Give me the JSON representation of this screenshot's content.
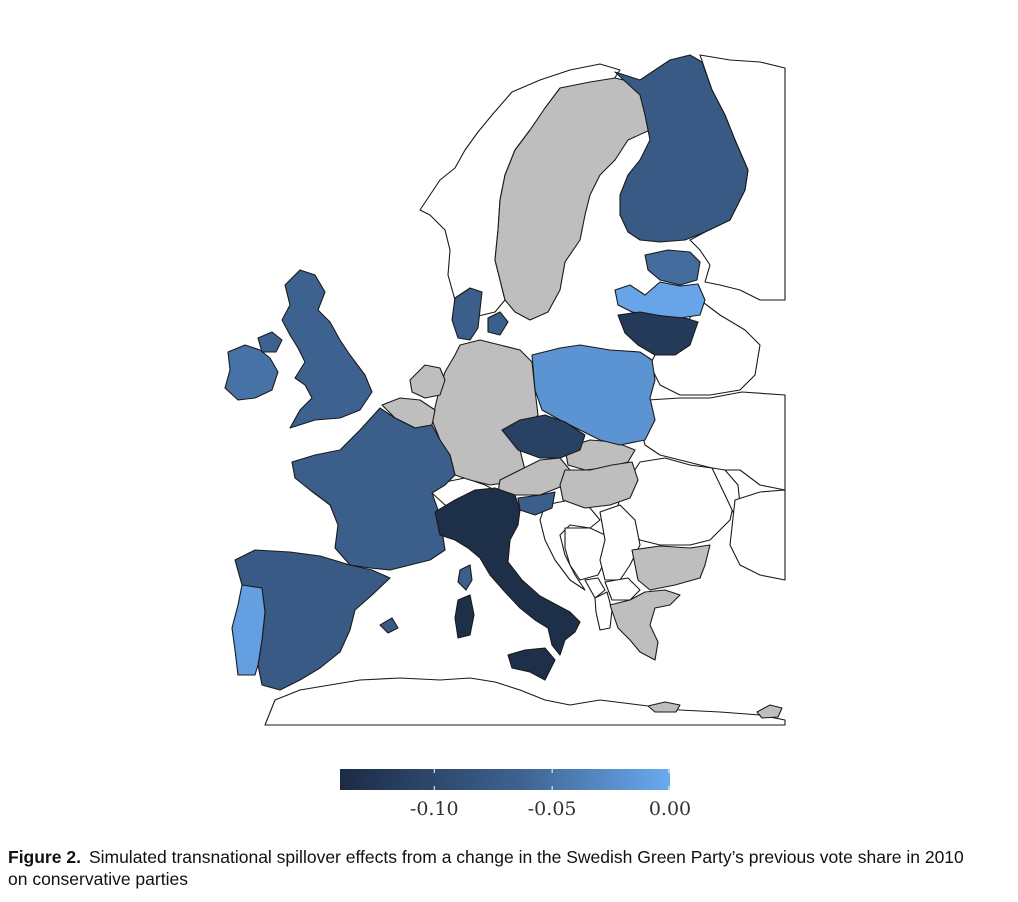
{
  "figure": {
    "label": "Figure 2.",
    "caption_line1": "Simulated transnational spillover effects from a change in the Swedish Green Party’s previous vote share in 2010",
    "caption_line2": "on conservative parties"
  },
  "colorbar": {
    "min": -0.14,
    "max": 0.0,
    "color_low": "#1c2b45",
    "color_mid": "#3e6391",
    "color_high": "#6aaaf0",
    "ticks": [
      {
        "value": -0.1,
        "label": "-0.10"
      },
      {
        "value": -0.05,
        "label": "-0.05"
      },
      {
        "value": 0.0,
        "label": "0.00"
      }
    ]
  },
  "legend_colors": {
    "no_data": "#bebebe",
    "outside_sample": "#ffffff",
    "border": "#1a1a1a"
  },
  "map_data": {
    "colored_countries": [
      {
        "name": "Finland",
        "value": -0.075
      },
      {
        "name": "Estonia",
        "value": -0.055
      },
      {
        "name": "Latvia",
        "value": -0.005
      },
      {
        "name": "Lithuania",
        "value": -0.12
      },
      {
        "name": "Poland",
        "value": -0.02
      },
      {
        "name": "Denmark",
        "value": -0.07
      },
      {
        "name": "United Kingdom",
        "value": -0.065
      },
      {
        "name": "Ireland",
        "value": -0.05
      },
      {
        "name": "France",
        "value": -0.07
      },
      {
        "name": "Spain",
        "value": -0.075
      },
      {
        "name": "Portugal",
        "value": -0.01
      },
      {
        "name": "Czech Republic",
        "value": -0.11
      },
      {
        "name": "Slovenia",
        "value": -0.07
      },
      {
        "name": "Italy",
        "value": -0.135
      }
    ],
    "no_data_countries": [
      "Sweden",
      "Germany",
      "Netherlands",
      "Belgium",
      "Luxembourg",
      "Austria",
      "Slovakia",
      "Hungary",
      "Bulgaria",
      "Greece",
      "Cyprus"
    ],
    "outside_countries": [
      "Norway",
      "Russia",
      "Belarus",
      "Ukraine",
      "Switzerland",
      "Romania",
      "Croatia",
      "Serbia",
      "Bosnia",
      "Montenegro",
      "Albania",
      "Macedonia",
      "Moldova",
      "Turkey",
      "Morocco",
      "Algeria",
      "Tunisia"
    ]
  }
}
